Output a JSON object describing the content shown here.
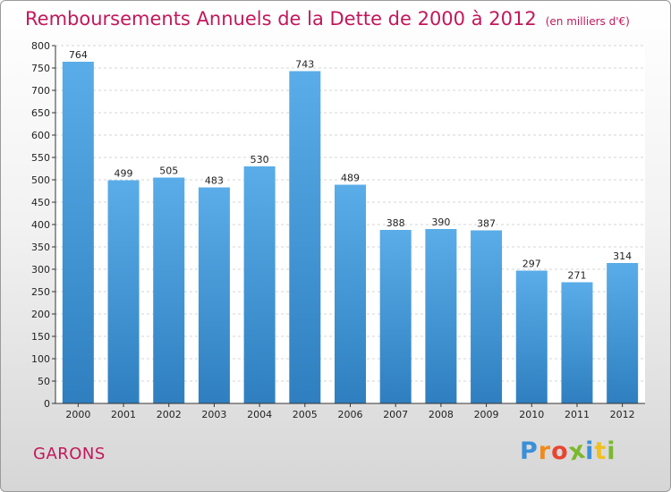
{
  "chart_data": {
    "type": "bar",
    "title": "Remboursements Annuels de la Dette de 2000 à 2012",
    "unit_note": "(en milliers d'€)",
    "categories": [
      "2000",
      "2001",
      "2002",
      "2003",
      "2004",
      "2005",
      "2006",
      "2007",
      "2008",
      "2009",
      "2010",
      "2011",
      "2012"
    ],
    "values": [
      764,
      499,
      505,
      483,
      530,
      743,
      489,
      388,
      390,
      387,
      297,
      271,
      314
    ],
    "ylim": [
      0,
      800
    ],
    "ytick_step": 50,
    "grid": true,
    "bar_color_top": "#5aade8",
    "bar_color_bottom": "#2f7fc0"
  },
  "footer": {
    "city": "GARONS",
    "brand_letters": [
      "P",
      "r",
      "o",
      "x",
      "i",
      "t",
      "i"
    ],
    "brand_colors": [
      "#3a8fd8",
      "#f08a1c",
      "#e8452f",
      "#7cb82f",
      "#3a8fd8",
      "#f0c020",
      "#7cb82f"
    ]
  }
}
